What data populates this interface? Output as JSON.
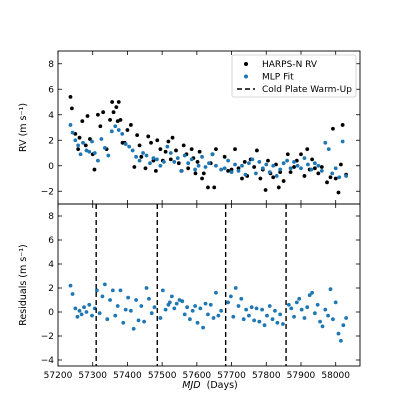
{
  "chart_data": {
    "type": "scatter",
    "colors": {
      "harps": "#000000",
      "mlp": "#1f77b4",
      "warmup": "#000000"
    },
    "top_panel": {
      "ylabel": "RV (m s⁻¹)",
      "ylim": [
        -3,
        9
      ],
      "yticks": [
        -2,
        0,
        2,
        4,
        6,
        8
      ],
      "legend": {
        "placement": "upper-right",
        "entries": [
          "HARPS-N RV",
          "MLP Fit",
          "Cold Plate Warm-Up"
        ]
      },
      "series": [
        {
          "name": "HARPS-N RV",
          "x": [
            57236,
            57240,
            57250,
            57258,
            57262,
            57270,
            57280,
            57285,
            57292,
            57300,
            57305,
            57315,
            57322,
            57330,
            57340,
            57350,
            57356,
            57360,
            57368,
            57372,
            57375,
            57380,
            57386,
            57392,
            57400,
            57410,
            57420,
            57428,
            57435,
            57440,
            57452,
            57460,
            57468,
            57475,
            57482,
            57486,
            57495,
            57502,
            57510,
            57518,
            57525,
            57530,
            57540,
            57548,
            57556,
            57562,
            57570,
            57575,
            57585,
            57590,
            57596,
            57602,
            57608,
            57615,
            57620,
            57632,
            57640,
            57645,
            57650,
            57655,
            57680,
            57690,
            57700,
            57710,
            57720,
            57730,
            57738,
            57745,
            57755,
            57765,
            57773,
            57783,
            57790,
            57798,
            57805,
            57812,
            57820,
            57828,
            57836,
            57840,
            57850,
            57862,
            57870,
            57880,
            57888,
            57900,
            57910,
            57918,
            57925,
            57932,
            57940,
            57950,
            57960,
            57975,
            57985,
            57992,
            58000,
            58008,
            58015,
            58020,
            58030
          ],
          "y": [
            5.4,
            4.5,
            2.5,
            1.3,
            2.2,
            3.5,
            1.6,
            3.9,
            2.1,
            0.9,
            -0.3,
            4.0,
            3.1,
            4.2,
            1.3,
            3.6,
            5.0,
            4.2,
            4.6,
            3.5,
            5.0,
            3.6,
            1.8,
            1.8,
            2.8,
            3.2,
            -0.1,
            2.4,
            1.6,
            0.7,
            -0.2,
            2.3,
            1.8,
            0.4,
            -0.4,
            2.0,
            1.3,
            0.4,
            1.1,
            1.9,
            0.5,
            2.2,
            1.2,
            0.2,
            -0.4,
            1.6,
            0.9,
            -0.2,
            1.3,
            0.6,
            -0.6,
            0.3,
            1.1,
            -1.0,
            -0.6,
            -1.7,
            0.2,
            0.9,
            -1.7,
            1.3,
            0.7,
            -0.4,
            -0.3,
            1.3,
            -0.2,
            -1.0,
            0.3,
            -0.8,
            0.5,
            -0.1,
            1.2,
            -1.0,
            -0.3,
            -1.9,
            0.4,
            -0.6,
            -0.9,
            0.1,
            -1.7,
            -0.5,
            -1.2,
            0.9,
            -0.5,
            -0.1,
            0.4,
            0.9,
            -0.8,
            1.3,
            -0.3,
            0.5,
            -0.2,
            -0.6,
            -0.1,
            -1.3,
            -0.9,
            2.9,
            -1.0,
            -2.1,
            0.1,
            3.2,
            -0.7
          ]
        },
        {
          "name": "MLP Fit",
          "x": [
            57236,
            57242,
            57250,
            57258,
            57265,
            57272,
            57282,
            57290,
            57298,
            57306,
            57315,
            57325,
            57335,
            57345,
            57355,
            57365,
            57375,
            57385,
            57395,
            57405,
            57415,
            57425,
            57435,
            57445,
            57455,
            57465,
            57475,
            57485,
            57495,
            57505,
            57515,
            57525,
            57535,
            57545,
            57555,
            57565,
            57575,
            57585,
            57595,
            57605,
            57615,
            57625,
            57635,
            57645,
            57655,
            57670,
            57680,
            57690,
            57700,
            57710,
            57720,
            57730,
            57740,
            57750,
            57760,
            57770,
            57780,
            57790,
            57800,
            57810,
            57820,
            57830,
            57840,
            57850,
            57860,
            57870,
            57880,
            57890,
            57900,
            57910,
            57920,
            57930,
            57940,
            57950,
            57960,
            57970,
            57980,
            57990,
            58000,
            58010,
            58020,
            58030
          ],
          "y": [
            3.2,
            2.6,
            2.0,
            1.6,
            0.9,
            1.8,
            1.2,
            1.1,
            1.9,
            1.0,
            0.4,
            2.1,
            1.4,
            0.8,
            2.7,
            3.1,
            2.8,
            2.5,
            1.7,
            1.5,
            1.2,
            0.7,
            0.4,
            1.0,
            0.8,
            0.2,
            0.6,
            0.5,
            0.0,
            0.3,
            1.5,
            1.0,
            0.3,
            0.6,
            -0.4,
            0.8,
            0.2,
            0.5,
            -0.3,
            0.0,
            0.7,
            -0.1,
            0.2,
            0.9,
            0.0,
            -0.3,
            -0.2,
            0.4,
            -0.5,
            0.1,
            -0.4,
            0.0,
            -0.7,
            0.2,
            0.5,
            -0.6,
            0.3,
            -0.2,
            0.1,
            -0.5,
            0.0,
            -0.8,
            -0.3,
            0.2,
            0.4,
            -0.2,
            0.3,
            0.0,
            -0.2,
            0.6,
            0.1,
            -0.3,
            0.2,
            0.0,
            -0.4,
            1.8,
            1.3,
            -0.6,
            -0.2,
            -0.9,
            1.9,
            -0.8
          ]
        }
      ]
    },
    "bottom_panel": {
      "ylabel": "Residuals (m s⁻¹)",
      "ylim": [
        -4.5,
        9
      ],
      "yticks": [
        -4,
        -2,
        0,
        2,
        4,
        6,
        8
      ],
      "series": [
        {
          "name": "Residuals",
          "x": [
            57236,
            57242,
            57250,
            57256,
            57262,
            57268,
            57275,
            57282,
            57290,
            57298,
            57306,
            57312,
            57320,
            57328,
            57335,
            57342,
            57350,
            57358,
            57365,
            57372,
            57380,
            57388,
            57395,
            57402,
            57410,
            57418,
            57425,
            57432,
            57440,
            57448,
            57455,
            57462,
            57470,
            57478,
            57495,
            57502,
            57510,
            57518,
            57522,
            57528,
            57535,
            57542,
            57550,
            57558,
            57565,
            57572,
            57580,
            57588,
            57595,
            57602,
            57610,
            57618,
            57625,
            57632,
            57640,
            57648,
            57655,
            57662,
            57670,
            57690,
            57698,
            57705,
            57712,
            57720,
            57728,
            57735,
            57742,
            57750,
            57758,
            57765,
            57772,
            57780,
            57788,
            57795,
            57802,
            57810,
            57818,
            57825,
            57832,
            57840,
            57848,
            57865,
            57872,
            57880,
            57888,
            57895,
            57902,
            57910,
            57918,
            57925,
            57932,
            57940,
            57948,
            57955,
            57962,
            57970,
            57978,
            57985,
            57992,
            58000,
            58008,
            58015,
            58022,
            58030
          ],
          "y": [
            2.2,
            1.5,
            0.3,
            -0.4,
            0.1,
            -0.2,
            0.4,
            0.0,
            0.6,
            -0.3,
            0.3,
            1.8,
            -0.1,
            1.3,
            2.3,
            -0.6,
            1.0,
            1.8,
            -0.3,
            0.5,
            1.8,
            -0.9,
            0.2,
            1.2,
            0.1,
            -1.4,
            1.0,
            -0.7,
            0.5,
            -0.8,
            2.0,
            1.1,
            -0.1,
            0.4,
            -0.5,
            1.8,
            0.2,
            0.6,
            0.8,
            1.3,
            0.3,
            0.7,
            1.0,
            0.9,
            -0.2,
            0.4,
            -0.6,
            0.1,
            0.5,
            -0.9,
            0.3,
            -1.3,
            0.7,
            -0.2,
            0.6,
            -0.5,
            1.6,
            -0.3,
            0.1,
            0.8,
            1.3,
            -0.4,
            2.0,
            0.5,
            1.1,
            -0.6,
            0.2,
            -0.3,
            0.4,
            -0.7,
            0.3,
            -0.8,
            0.2,
            -1.1,
            -0.3,
            0.5,
            -0.6,
            0.1,
            -0.9,
            -0.2,
            -1.0,
            0.6,
            0.3,
            -0.4,
            0.8,
            1.1,
            0.2,
            -0.5,
            0.4,
            1.4,
            1.6,
            -0.1,
            0.6,
            -0.8,
            -1.2,
            0.2,
            -0.3,
            1.9,
            -0.6,
            0.8,
            -1.8,
            -2.4,
            -1.1,
            -0.5
          ]
        }
      ]
    },
    "xlabel_main": "MJD",
    "xlabel_units": "(Days)",
    "xlim": [
      57200,
      58070
    ],
    "xticks": [
      57200,
      57300,
      57400,
      57500,
      57600,
      57700,
      57800,
      57900,
      58000
    ],
    "warmup_lines_x": [
      57310,
      57486,
      57683,
      57857
    ]
  }
}
